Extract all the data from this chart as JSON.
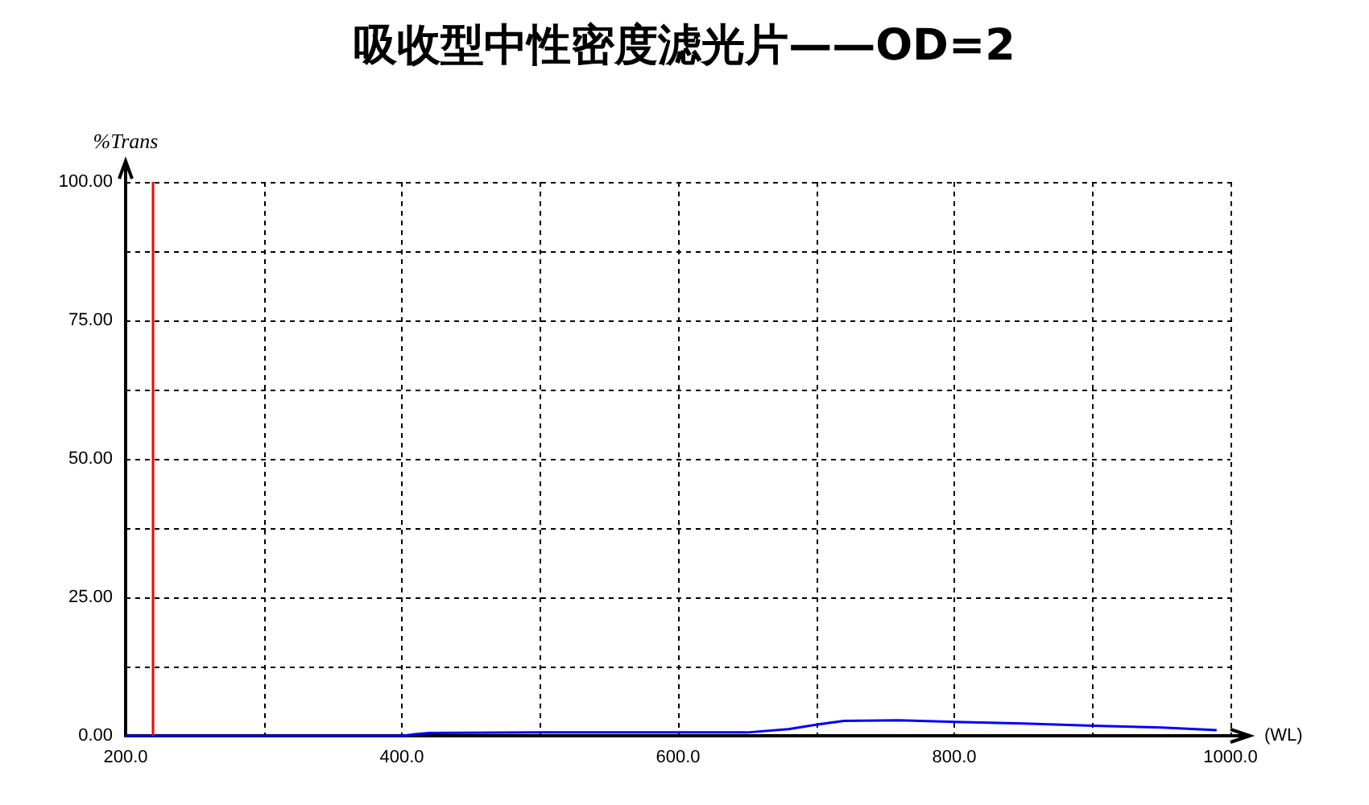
{
  "chart_data": {
    "type": "line",
    "title": "吸收型中性密度滤光片——OD=2",
    "xlabel": "(WL)",
    "ylabel": "%Trans",
    "x": [
      200,
      400,
      410,
      420,
      500,
      600,
      650,
      680,
      700,
      720,
      760,
      800,
      850,
      900,
      950,
      990
    ],
    "series": [
      {
        "color": "#0000ff",
        "values": [
          0,
          0,
          0.3,
          0.5,
          0.6,
          0.6,
          0.6,
          1.2,
          2.0,
          2.7,
          2.8,
          2.5,
          2.2,
          1.8,
          1.5,
          1.0
        ]
      }
    ],
    "xlim": [
      200,
      1000
    ],
    "xticks": [
      {
        "value": 200,
        "label": "200.0"
      },
      {
        "value": 300,
        "label": null
      },
      {
        "value": 400,
        "label": "400.0"
      },
      {
        "value": 500,
        "label": null
      },
      {
        "value": 600,
        "label": "600.0"
      },
      {
        "value": 700,
        "label": null
      },
      {
        "value": 800,
        "label": "800.0"
      },
      {
        "value": 900,
        "label": null
      },
      {
        "value": 1000,
        "label": "1000.0"
      }
    ],
    "ylim": [
      0,
      100
    ],
    "yticks": [
      {
        "value": 0,
        "label": "0.00"
      },
      {
        "value": 12.5,
        "label": null
      },
      {
        "value": 25,
        "label": "25.00"
      },
      {
        "value": 37.5,
        "label": null
      },
      {
        "value": 50,
        "label": "50.00"
      },
      {
        "value": 62.5,
        "label": null
      },
      {
        "value": 75,
        "label": "75.00"
      },
      {
        "value": 87.5,
        "label": null
      },
      {
        "value": 100,
        "label": "100.00"
      }
    ],
    "ref_lines": [
      {
        "axis": "x",
        "value": 220,
        "color": "#ff0000"
      }
    ],
    "grid": true,
    "marker": "none",
    "line_style": "solid"
  }
}
